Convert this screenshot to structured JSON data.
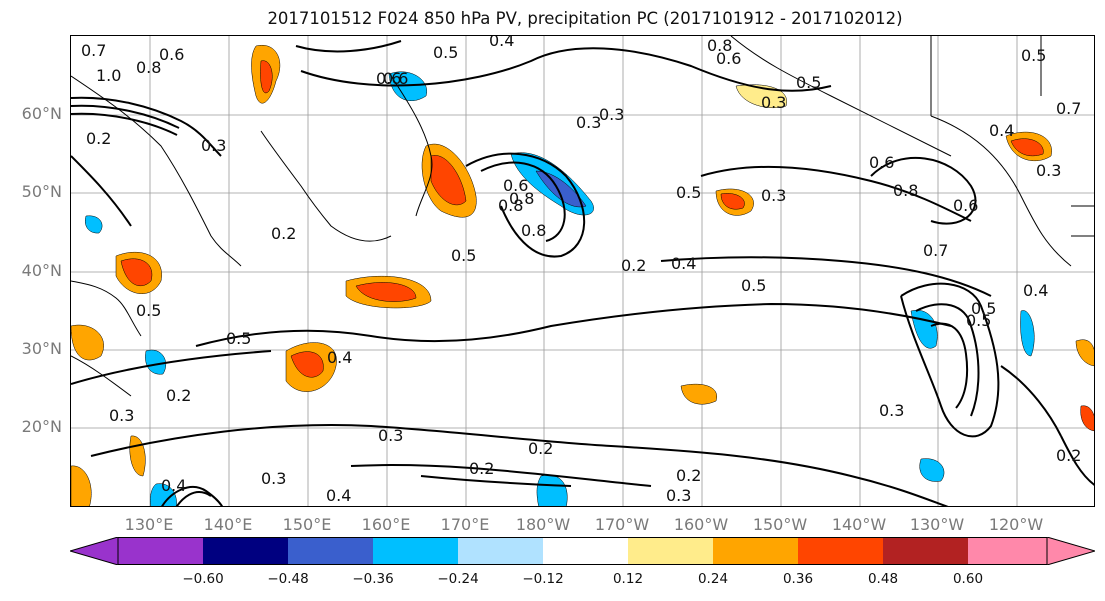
{
  "title": "2017101512 F024 850 hPa PV, precipitation PC (2017101912 - 2017102012)",
  "lat_labels": [
    "60°N",
    "50°N",
    "40°N",
    "30°N",
    "20°N"
  ],
  "lon_labels": [
    "130°E",
    "140°E",
    "150°E",
    "160°E",
    "170°E",
    "180°W",
    "170°W",
    "160°W",
    "150°W",
    "140°W",
    "130°W",
    "120°W"
  ],
  "colorbar": {
    "ticks": [
      "−0.60",
      "−0.48",
      "−0.36",
      "−0.24",
      "−0.12",
      "0.12",
      "0.24",
      "0.36",
      "0.48",
      "0.60"
    ],
    "colors": [
      "#9933cc",
      "#000080",
      "#3a5fcd",
      "#00bfff",
      "#b0e2ff",
      "#ffffff",
      "#ffec8b",
      "#ffa500",
      "#ff4500",
      "#b22222",
      "#ff88aa"
    ]
  },
  "contour_labels": [
    "0.4",
    "0.5",
    "0.6",
    "0.8",
    "0.6",
    "0.7",
    "1.0",
    "0.8",
    "0.6",
    "0.2",
    "0.3",
    "0.6",
    "0.5",
    "0.3",
    "0.5",
    "0.8",
    "0.6",
    "0.3",
    "0.5",
    "0.4",
    "0.5",
    "0.2",
    "0.3",
    "0.5",
    "0.4",
    "0.2",
    "0.3",
    "0.3",
    "0.2",
    "0.2",
    "0.3",
    "0.2",
    "0.3",
    "0.4",
    "0.6",
    "0.8",
    "0.6",
    "0.7",
    "0.4",
    "0.5",
    "0.3",
    "0.2",
    "0.5",
    "0.7",
    "0.5",
    "0.3",
    "0.4",
    "0.2",
    "0.5",
    "0.8",
    "0.8",
    "0.3",
    "0.4"
  ],
  "chart_data": {
    "type": "heatmap",
    "map_region": {
      "lat_range": [
        "10°N",
        "70°N"
      ],
      "lon_range": [
        "120°E",
        "115°W"
      ]
    },
    "contour_field": "850 hPa PV",
    "fill_field": "precipitation PC",
    "contour_levels": [
      0.2,
      0.3,
      0.4,
      0.5,
      0.6,
      0.7,
      0.8,
      1.0
    ],
    "fill_levels": [
      -0.6,
      -0.48,
      -0.36,
      -0.24,
      -0.12,
      0.12,
      0.24,
      0.36,
      0.48,
      0.6
    ],
    "grid": true
  }
}
